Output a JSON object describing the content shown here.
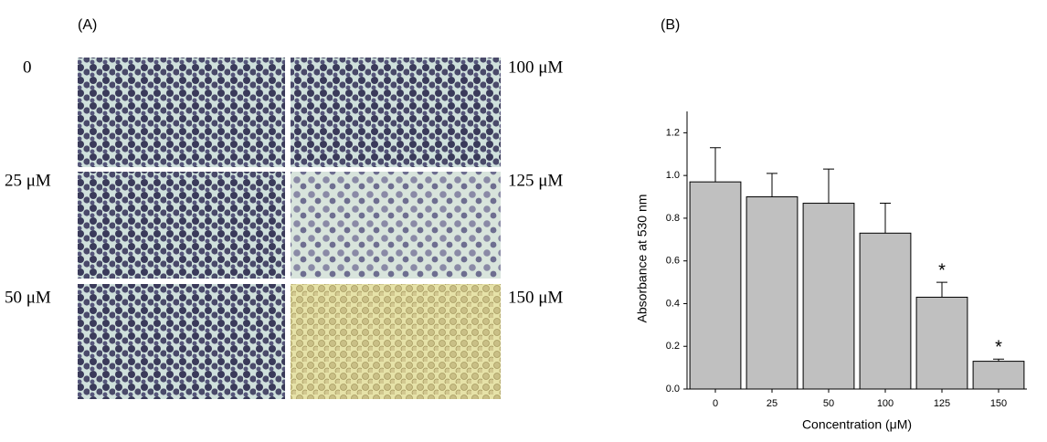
{
  "panel_a": {
    "label": "(A)",
    "conditions": [
      "0",
      "25 μM",
      "50 μM",
      "100 μM",
      "125 μM",
      "150 μM"
    ]
  },
  "chart_data": {
    "type": "bar",
    "panel_label": "(B)",
    "x_label": "Concentration (μM)",
    "y_label": "Absorbance at 530 nm",
    "categories": [
      "0",
      "25",
      "50",
      "100",
      "125",
      "150"
    ],
    "values": [
      0.97,
      0.9,
      0.87,
      0.73,
      0.43,
      0.13
    ],
    "errors": [
      0.16,
      0.11,
      0.16,
      0.14,
      0.07,
      0.01
    ],
    "significance": [
      null,
      null,
      null,
      null,
      "*",
      "*"
    ],
    "color": "#c0c0c0",
    "ylim": [
      0,
      1.3
    ],
    "yticks": [
      {
        "value": 0,
        "label": "0.0"
      },
      0.2,
      0.4,
      0.6,
      0.8,
      {
        "value": 1,
        "label": "1.0"
      },
      1.2
    ]
  }
}
